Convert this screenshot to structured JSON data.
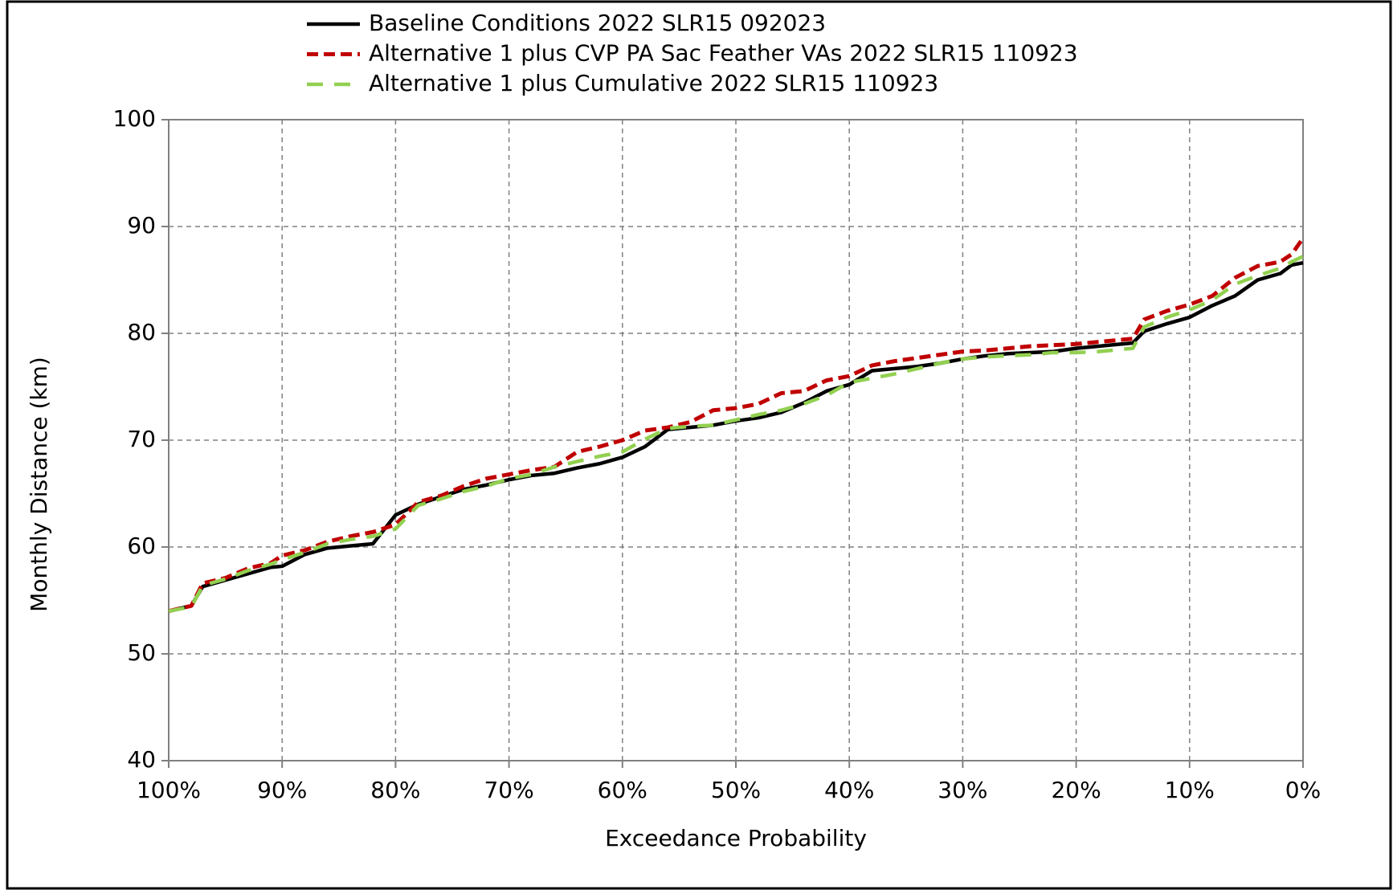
{
  "chart_data": {
    "type": "line",
    "xlabel": "Exceedance Probability",
    "ylabel": "Monthly Distance (km)",
    "x": [
      100,
      98,
      97,
      95,
      93,
      91,
      90,
      88,
      86,
      84,
      82,
      80,
      78,
      76,
      74,
      72,
      70,
      68,
      66,
      64,
      62,
      60,
      58,
      56,
      54,
      52,
      50,
      48,
      46,
      44,
      42,
      40,
      38,
      36,
      34,
      32,
      30,
      28,
      26,
      24,
      22,
      20,
      18,
      16,
      15,
      14,
      12,
      10,
      8,
      6,
      4,
      2,
      1,
      0
    ],
    "series": [
      {
        "name": "Baseline Conditions 2022 SLR15 092023",
        "color": "#000000",
        "dash": "solid",
        "values": [
          54.0,
          54.5,
          56.3,
          56.9,
          57.5,
          58.1,
          58.2,
          59.3,
          59.9,
          60.1,
          60.3,
          63.0,
          64.0,
          64.7,
          65.4,
          65.8,
          66.3,
          66.7,
          66.9,
          67.4,
          67.8,
          68.4,
          69.4,
          71.0,
          71.2,
          71.4,
          71.8,
          72.1,
          72.6,
          73.5,
          74.6,
          75.2,
          76.5,
          76.7,
          76.9,
          77.2,
          77.6,
          77.9,
          78.1,
          78.2,
          78.3,
          78.6,
          78.8,
          79.0,
          79.1,
          80.2,
          80.9,
          81.5,
          82.6,
          83.5,
          85.0,
          85.6,
          86.4,
          86.6
        ]
      },
      {
        "name": "Alternative 1 plus CVP PA Sac Feather VAs 2022 SLR15 110923",
        "color": "#c00000",
        "dash": "short",
        "values": [
          54.0,
          54.5,
          56.6,
          57.1,
          58.0,
          58.5,
          59.2,
          59.7,
          60.5,
          61.0,
          61.4,
          62.1,
          64.2,
          64.8,
          65.7,
          66.4,
          66.8,
          67.2,
          67.5,
          68.9,
          69.4,
          70.0,
          70.9,
          71.2,
          71.7,
          72.8,
          73.0,
          73.4,
          74.4,
          74.6,
          75.6,
          76.0,
          77.0,
          77.4,
          77.7,
          78.0,
          78.3,
          78.4,
          78.6,
          78.8,
          78.9,
          79.0,
          79.2,
          79.4,
          79.5,
          81.3,
          82.1,
          82.7,
          83.5,
          85.2,
          86.3,
          86.7,
          87.4,
          88.9
        ]
      },
      {
        "name": "Alternative 1 plus Cumulative 2022 SLR15 110923",
        "color": "#92d050",
        "dash": "long",
        "values": [
          54.0,
          54.4,
          56.4,
          57.0,
          57.8,
          58.4,
          58.8,
          59.5,
          60.3,
          60.7,
          61.0,
          61.7,
          63.9,
          64.5,
          65.2,
          65.7,
          66.4,
          66.8,
          67.5,
          68.0,
          68.5,
          68.9,
          70.1,
          71.1,
          71.3,
          71.4,
          71.9,
          72.4,
          72.8,
          73.4,
          74.2,
          75.4,
          75.8,
          76.2,
          76.7,
          77.2,
          77.6,
          77.8,
          77.9,
          78.0,
          78.2,
          78.2,
          78.3,
          78.5,
          78.6,
          80.6,
          81.5,
          82.2,
          83.1,
          84.6,
          85.4,
          86.1,
          86.7,
          87.2
        ]
      }
    ],
    "xlim": [
      100,
      0
    ],
    "xticks": [
      {
        "value": 100,
        "label": "100%"
      },
      {
        "value": 90,
        "label": "90%"
      },
      {
        "value": 80,
        "label": "80%"
      },
      {
        "value": 70,
        "label": "70%"
      },
      {
        "value": 60,
        "label": "60%"
      },
      {
        "value": 50,
        "label": "50%"
      },
      {
        "value": 40,
        "label": "40%"
      },
      {
        "value": 30,
        "label": "30%"
      },
      {
        "value": 20,
        "label": "20%"
      },
      {
        "value": 10,
        "label": "10%"
      },
      {
        "value": 0,
        "label": "0%"
      }
    ],
    "ylim": [
      40,
      100
    ],
    "yticks": [
      40,
      50,
      60,
      70,
      80,
      90,
      100
    ],
    "grid": true,
    "legend": "top"
  }
}
